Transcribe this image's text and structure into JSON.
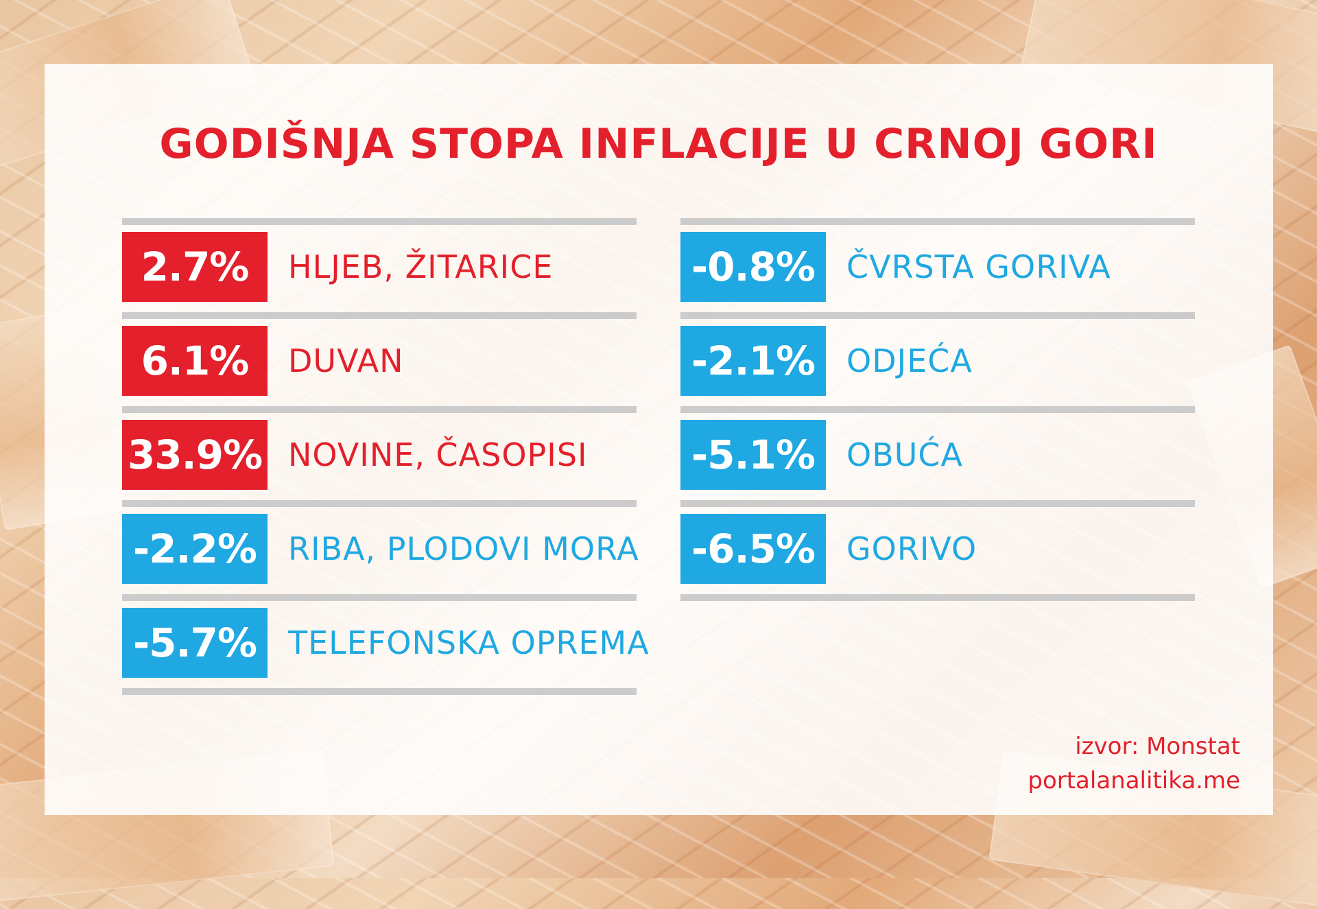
{
  "title": "GODIŠNJA STOPA INFLACIJE U CRNOJ GORI",
  "colors": {
    "increase": "#e3202b",
    "decrease": "#1fa8e2"
  },
  "left_items": [
    {
      "value": "2.7%",
      "label": "HLJEB, ŽITARICE",
      "color": "red"
    },
    {
      "value": "6.1%",
      "label": "DUVAN",
      "color": "red"
    },
    {
      "value": "33.9%",
      "label": "NOVINE, ČASOPISI",
      "color": "red"
    },
    {
      "value": "-2.2%",
      "label": "RIBA, PLODOVI MORA",
      "color": "blue"
    },
    {
      "value": "-5.7%",
      "label": "TELEFONSKA OPREMA",
      "color": "blue"
    }
  ],
  "right_items": [
    {
      "value": "-0.8%",
      "label": "ČVRSTA GORIVA",
      "color": "blue"
    },
    {
      "value": "-2.1%",
      "label": "ODJEĆA",
      "color": "blue"
    },
    {
      "value": "-5.1%",
      "label": "OBUĆA",
      "color": "blue"
    },
    {
      "value": "-6.5%",
      "label": "GORIVO",
      "color": "blue"
    }
  ],
  "source": {
    "line1": "izvor: Monstat",
    "line2": "portalanalitika.me"
  }
}
